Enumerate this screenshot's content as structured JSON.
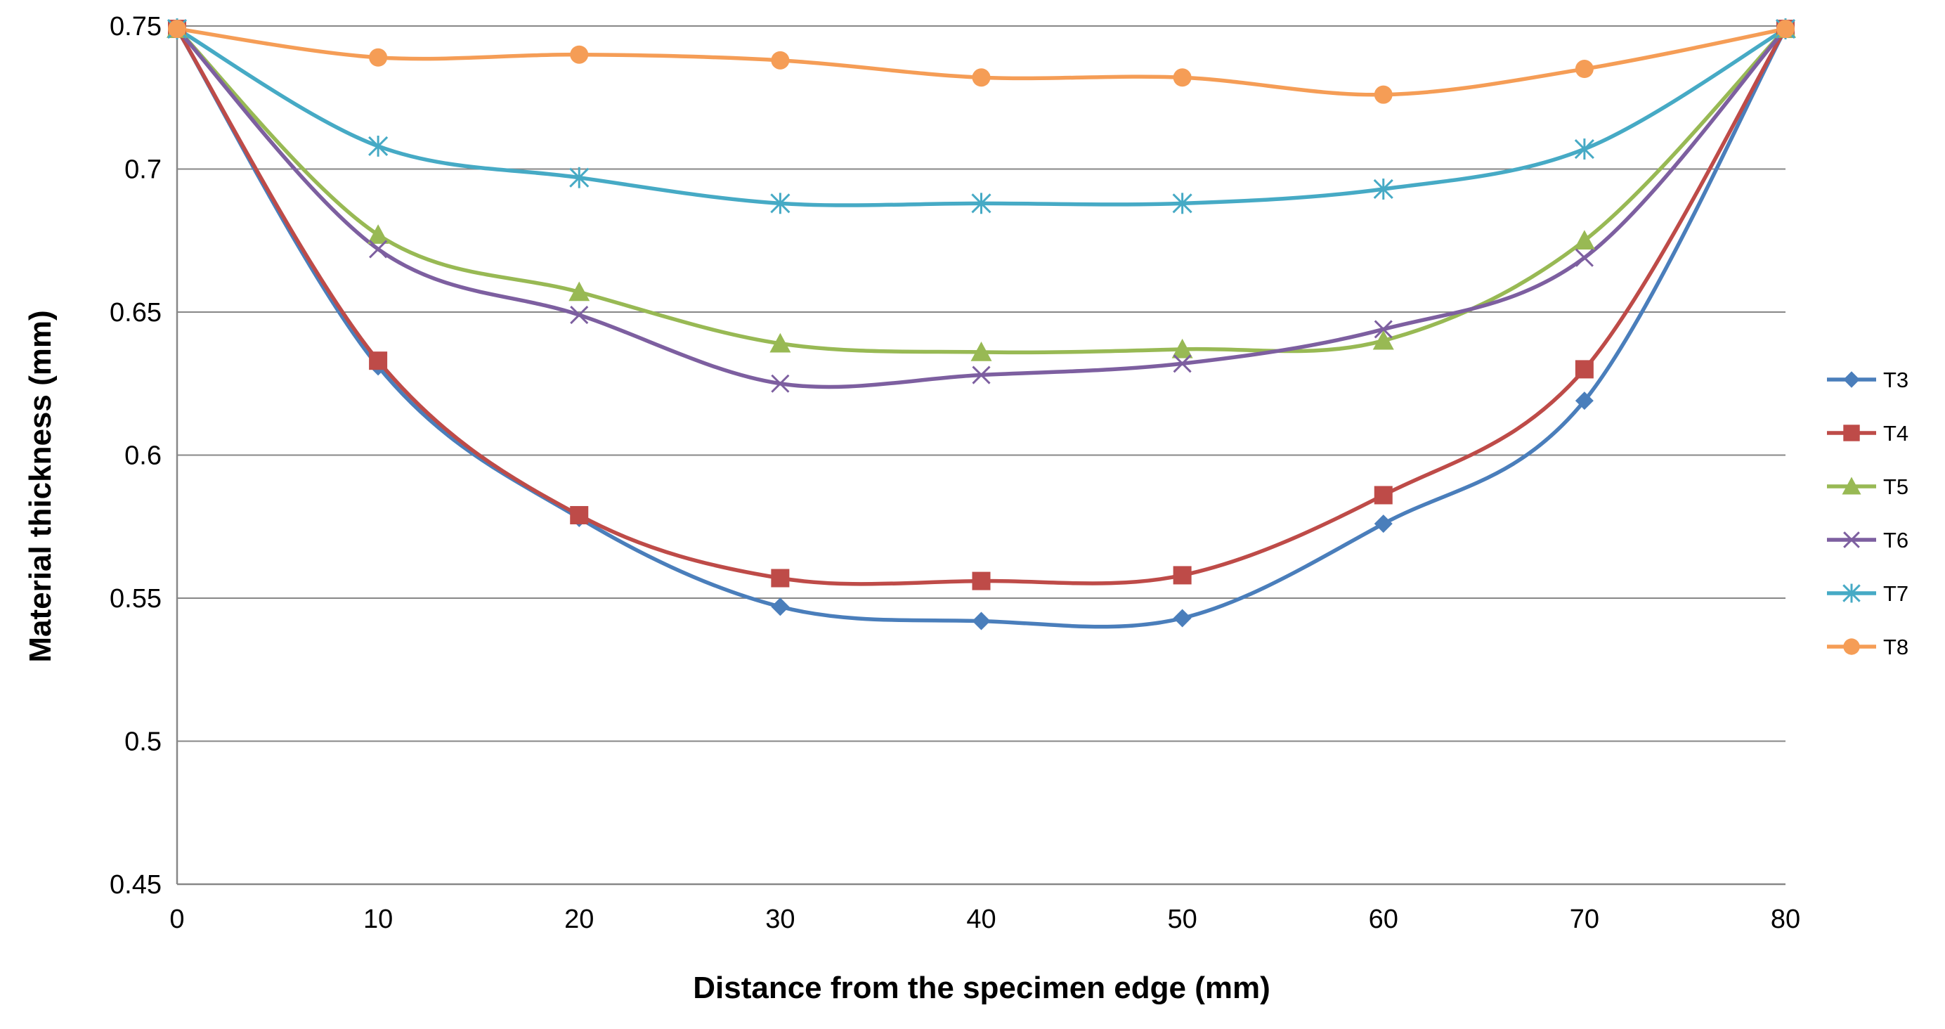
{
  "chart_data": {
    "type": "line",
    "title": "",
    "xlabel": "Distance from the specimen edge (mm)",
    "ylabel": "Material thickness  (mm)",
    "x": [
      0,
      10,
      20,
      30,
      40,
      50,
      60,
      70,
      80
    ],
    "xlim": [
      0,
      80
    ],
    "ylim": [
      0.45,
      0.75
    ],
    "x_ticks": [
      "0",
      "10",
      "20",
      "30",
      "40",
      "50",
      "60",
      "70",
      "80"
    ],
    "y_ticks": [
      "0.45",
      "0.5",
      "0.55",
      "0.6",
      "0.65",
      "0.7",
      "0.75"
    ],
    "grid": "horizontal",
    "legend_position": "right",
    "series": [
      {
        "name": "T3",
        "marker": "diamond",
        "color": "#4a7ebb",
        "values": [
          0.749,
          0.631,
          0.578,
          0.547,
          0.542,
          0.543,
          0.576,
          0.619,
          0.749
        ]
      },
      {
        "name": "T4",
        "marker": "square",
        "color": "#be4b48",
        "values": [
          0.749,
          0.633,
          0.579,
          0.557,
          0.556,
          0.558,
          0.586,
          0.63,
          0.749
        ]
      },
      {
        "name": "T5",
        "marker": "triangle",
        "color": "#98b954",
        "values": [
          0.749,
          0.677,
          0.657,
          0.639,
          0.636,
          0.637,
          0.64,
          0.675,
          0.749
        ]
      },
      {
        "name": "T6",
        "marker": "x",
        "color": "#7d5fa0",
        "values": [
          0.749,
          0.672,
          0.649,
          0.625,
          0.628,
          0.632,
          0.644,
          0.669,
          0.749
        ]
      },
      {
        "name": "T7",
        "marker": "star",
        "color": "#46aac5",
        "values": [
          0.749,
          0.708,
          0.697,
          0.688,
          0.688,
          0.688,
          0.693,
          0.707,
          0.749
        ]
      },
      {
        "name": "T8",
        "marker": "circle",
        "color": "#f59d56",
        "values": [
          0.749,
          0.739,
          0.74,
          0.738,
          0.732,
          0.732,
          0.726,
          0.735,
          0.749
        ]
      }
    ]
  }
}
